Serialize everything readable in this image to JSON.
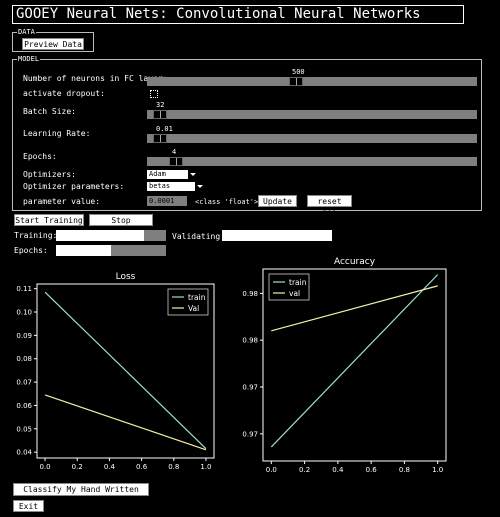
{
  "title": "GOOEY Neural Nets: Convolutional Neural Networks",
  "data_frame": {
    "label": "DATA",
    "preview_button": "Preview Data"
  },
  "model": {
    "label": "MODEL",
    "fc_neurons": {
      "label": "Number of neurons in FC layer:",
      "value": "500",
      "fraction": 0.45
    },
    "dropout": {
      "label": "activate dropout:",
      "checked": false
    },
    "batch_size": {
      "label": "Batch Size:",
      "value": "32",
      "fraction": 0.02
    },
    "learning_rate": {
      "label": "Learning Rate:",
      "value": "0.01",
      "fraction": 0.02
    },
    "epochs": {
      "label": "Epochs:",
      "value": "4",
      "fraction": 0.07
    },
    "optimizers": {
      "label": "Optimizers:",
      "selected": "Adam"
    },
    "optimizer_parameters": {
      "label": "Optimizer parameters:",
      "selected": "betas"
    },
    "parameter_value": {
      "label": "parameter value:",
      "value": "0.0001",
      "type_text": "<class 'float'>"
    },
    "update_button": "Update",
    "reset_button": "reset all"
  },
  "controls": {
    "start_training": "Start Training",
    "stop_training": "Stop Training"
  },
  "progress": {
    "training_label": "Training:",
    "training_fraction": 0.8,
    "validating_label": "Validating:",
    "validating_fraction": 1.0,
    "epochs_label": "Epochs:",
    "epochs_fraction": 0.5
  },
  "chart_data": [
    {
      "type": "line",
      "title": "Loss",
      "x": [
        0.0,
        1.0
      ],
      "xticks": [
        "0.0",
        "0.2",
        "0.4",
        "0.6",
        "0.8",
        "1.0"
      ],
      "yticks": [
        "0.04",
        "0.05",
        "0.06",
        "0.07",
        "0.08",
        "0.09",
        "0.10",
        "0.11"
      ],
      "xlim": [
        -0.05,
        1.05
      ],
      "ylim": [
        0.0375,
        0.112
      ],
      "series": [
        {
          "name": "train",
          "values": [
            0.1085,
            0.0415
          ],
          "color": "#9fe0c8"
        },
        {
          "name": "Val",
          "values": [
            0.0645,
            0.041
          ],
          "color": "#f5f0a8"
        }
      ],
      "legend": "top-right"
    },
    {
      "type": "line",
      "title": "Accuracy",
      "x": [
        0.0,
        1.0
      ],
      "xticks": [
        "0.0",
        "0.2",
        "0.4",
        "0.6",
        "0.8",
        "1.0"
      ],
      "yticks": [
        "0.97",
        "0.97",
        "0.98",
        "0.98"
      ],
      "ytick_values": [
        0.9725,
        0.9775,
        0.9825,
        0.9875
      ],
      "xlim": [
        -0.05,
        1.05
      ],
      "ylim": [
        0.9696,
        0.9901
      ],
      "series": [
        {
          "name": "train",
          "values": [
            0.9711,
            0.9895
          ],
          "color": "#9fe0c8"
        },
        {
          "name": "val",
          "values": [
            0.9835,
            0.9883
          ],
          "color": "#f5f0a8"
        }
      ],
      "legend": "top-left"
    }
  ],
  "classify_button": "Classify My Hand Written Digits",
  "exit_button": "Exit"
}
